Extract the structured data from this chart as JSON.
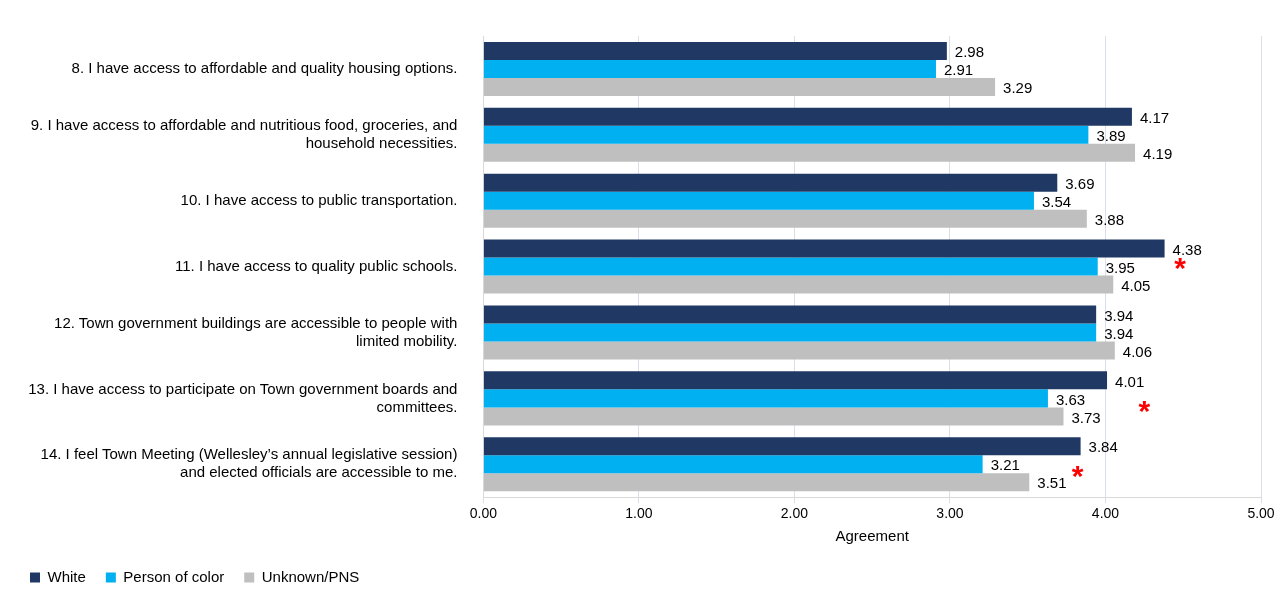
{
  "chart_data": {
    "type": "bar",
    "orientation": "horizontal",
    "xlabel": "Agreement",
    "categories": [
      "8. I have access to affordable and quality housing options.",
      "9. I have access to affordable and nutritious food, groceries, and household necessities.",
      "10. I have access to public transportation.",
      "11. I have access to quality public schools.",
      "12. Town government buildings are accessible to people with limited mobility.",
      "13. I have access to participate on Town government boards and committees.",
      "14. I feel Town Meeting (Wellesley’s annual legislative session) and elected officials are accessible to me."
    ],
    "series": [
      {
        "name": "White",
        "color": "#1f3864",
        "values": [
          2.98,
          4.17,
          3.69,
          4.38,
          3.94,
          4.01,
          3.84
        ]
      },
      {
        "name": "Person of color",
        "color": "#00b0f0",
        "values": [
          2.91,
          3.89,
          3.54,
          3.95,
          3.94,
          3.63,
          3.21
        ]
      },
      {
        "name": "Unknown/PNS",
        "color": "#bfbfbf",
        "values": [
          3.29,
          4.19,
          3.88,
          4.05,
          4.06,
          3.73,
          3.51
        ]
      }
    ],
    "xlim": [
      0,
      5
    ],
    "xticks": [
      {
        "value": 0,
        "label": "0.00"
      },
      {
        "value": 1,
        "label": "1.00"
      },
      {
        "value": 2,
        "label": "2.00"
      },
      {
        "value": 3,
        "label": "3.00"
      },
      {
        "value": 4,
        "label": "4.00"
      },
      {
        "value": 5,
        "label": "5.00"
      }
    ],
    "grid": "x",
    "legend": "bottom left",
    "data_labels": true,
    "annotations": [
      "*",
      "*",
      "*"
    ]
  }
}
